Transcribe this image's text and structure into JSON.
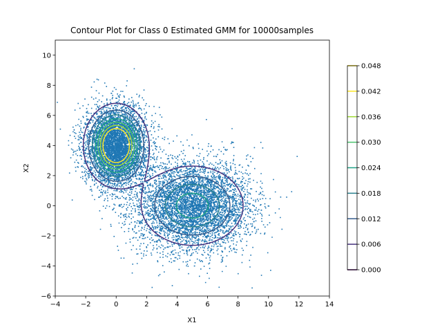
{
  "chart_data": {
    "type": "scatter",
    "title": "Contour Plot for Class 0 Estimated GMM for 10000samples",
    "xlabel": "X1",
    "ylabel": "X2",
    "xlim": [
      -4,
      14
    ],
    "ylim": [
      -6,
      11
    ],
    "xticks": [
      -4,
      -2,
      0,
      2,
      4,
      6,
      8,
      10,
      12,
      14
    ],
    "yticks": [
      -6,
      -4,
      -2,
      0,
      2,
      4,
      6,
      8,
      10
    ],
    "grid": false,
    "scatter": {
      "color": "#1f77b4",
      "n_points": 10000,
      "components": [
        {
          "mean": [
            0,
            4
          ],
          "std": [
            1.0,
            1.3
          ],
          "correlation": 0,
          "weight": 0.5
        },
        {
          "mean": [
            5,
            0
          ],
          "std": [
            1.9,
            1.5
          ],
          "correlation": 0,
          "weight": 0.5
        }
      ]
    },
    "contour": {
      "levels": [
        0.006,
        0.012,
        0.018,
        0.024,
        0.03,
        0.036,
        0.042
      ],
      "colormap": "viridis"
    },
    "colorbar": {
      "ticks": [
        "0.000",
        "0.006",
        "0.012",
        "0.018",
        "0.024",
        "0.030",
        "0.036",
        "0.042",
        "0.048"
      ],
      "min": 0.0,
      "max": 0.048,
      "level_colors": [
        "#440154",
        "#46327e",
        "#365c8d",
        "#277f8e",
        "#1fa187",
        "#4ac16d",
        "#a0da39",
        "#fde725",
        "#fde725"
      ]
    }
  }
}
